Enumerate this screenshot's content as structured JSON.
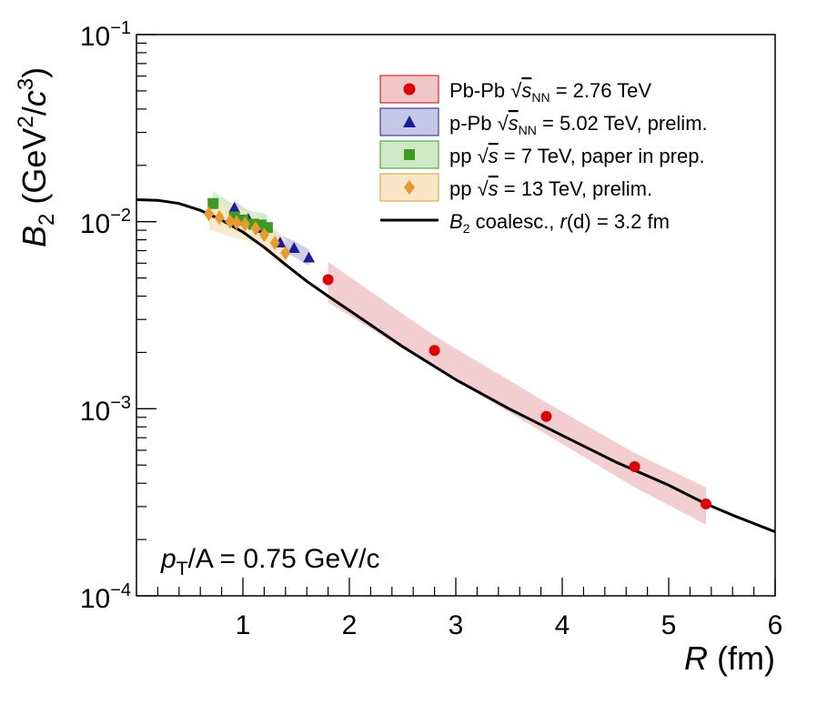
{
  "chart_data": {
    "type": "scatter",
    "title": "",
    "xlabel": "R (fm)",
    "ylabel": "B2 (GeV^2/c^3)",
    "xlim": [
      0,
      6
    ],
    "ylim": [
      0.0001,
      0.1
    ],
    "yscale": "log",
    "grid": false,
    "legend_position": "top-right",
    "x_ticks": [
      "1",
      "2",
      "3",
      "4",
      "5",
      "6"
    ],
    "y_ticks": [
      {
        "value": 0.1,
        "mantissa": "10",
        "exp": "−1"
      },
      {
        "value": 0.01,
        "mantissa": "10",
        "exp": "−2"
      },
      {
        "value": 0.001,
        "mantissa": "10",
        "exp": "−3"
      },
      {
        "value": 0.0001,
        "mantissa": "10",
        "exp": "−4"
      }
    ],
    "annotation": {
      "pre": "p",
      "sub": "T",
      "post": "/A = 0.75 GeV/c"
    },
    "series": [
      {
        "name": "Pb-Pb √sNN = 2.76 TeV",
        "marker": "circle",
        "color": "#dd0000",
        "band_color": "#f0c6c9",
        "x": [
          1.8,
          2.8,
          3.85,
          4.68,
          5.35
        ],
        "y": [
          0.0049,
          0.00205,
          0.00091,
          0.00049,
          0.00031
        ],
        "band_lo": [
          0.0037,
          0.00165,
          0.00073,
          0.00038,
          0.00024
        ],
        "band_hi": [
          0.0061,
          0.00245,
          0.00108,
          0.00058,
          0.00038
        ]
      },
      {
        "name": "p-Pb √sNN = 5.02 TeV, prelim.",
        "marker": "triangle",
        "color": "#1c1c9a",
        "band_color": "#c6c6e6",
        "x": [
          0.92,
          1.05,
          1.18,
          1.35,
          1.48,
          1.62
        ],
        "y": [
          0.0118,
          0.0103,
          0.0092,
          0.0077,
          0.0072,
          0.0064
        ],
        "band_lo": [
          0.0108,
          0.0094,
          0.0083,
          0.007,
          0.0065,
          0.0058
        ],
        "band_hi": [
          0.013,
          0.0113,
          0.0101,
          0.0085,
          0.0079,
          0.0071
        ]
      },
      {
        "name": "pp √s = 7 TeV, paper in prep.",
        "marker": "square",
        "color": "#3e9a23",
        "band_color": "#cfe9c6",
        "x": [
          0.72,
          0.92,
          1.0,
          1.1,
          1.17,
          1.23
        ],
        "y": [
          0.0125,
          0.0106,
          0.0102,
          0.0097,
          0.0096,
          0.0093
        ],
        "band_lo": [
          0.0108,
          0.0091,
          0.0087,
          0.0083,
          0.0081,
          0.0079
        ],
        "band_hi": [
          0.0145,
          0.0123,
          0.0119,
          0.0113,
          0.0112,
          0.0109
        ]
      },
      {
        "name": "pp √s = 13 TeV, prelim.",
        "marker": "diamond",
        "color": "#e99a2c",
        "band_color": "#f8e6c6",
        "x": [
          0.68,
          0.78,
          0.88,
          0.94,
          1.02,
          1.12,
          1.2,
          1.3,
          1.4
        ],
        "y": [
          0.011,
          0.0105,
          0.01,
          0.0099,
          0.0097,
          0.0092,
          0.0085,
          0.0077,
          0.0068
        ],
        "band_lo": [
          0.0091,
          0.0087,
          0.0083,
          0.0082,
          0.008,
          0.0076,
          0.007,
          0.0063,
          0.0056
        ],
        "band_hi": [
          0.013,
          0.0124,
          0.0118,
          0.0117,
          0.0114,
          0.0108,
          0.01,
          0.0091,
          0.0081
        ]
      }
    ],
    "model_curve": {
      "name": "B2 coalesc., r(d) = 3.2 fm",
      "color": "#000000",
      "x": [
        0.0,
        0.2,
        0.4,
        0.6,
        0.8,
        1.0,
        1.2,
        1.4,
        1.6,
        1.8,
        2.0,
        2.5,
        3.0,
        3.5,
        4.0,
        4.5,
        5.0,
        5.35,
        5.6,
        6.0
      ],
      "y": [
        0.0131,
        0.013,
        0.0125,
        0.0115,
        0.0102,
        0.0088,
        0.0073,
        0.0059,
        0.0048,
        0.004,
        0.00335,
        0.00215,
        0.00143,
        0.001,
        0.00072,
        0.00052,
        0.00039,
        0.00031,
        0.00027,
        0.00022
      ]
    }
  },
  "legend": {
    "entries": [
      {
        "pre": "Pb-Pb ",
        "sqrt": "s",
        "sub": "NN",
        "post": " = 2.76 TeV"
      },
      {
        "pre": "p-Pb ",
        "sqrt": "s",
        "sub": "NN",
        "post": " = 5.02 TeV, prelim."
      },
      {
        "pre": "pp ",
        "sqrt": "s",
        "sub": "",
        "post": " = 7 TeV, paper in prep."
      },
      {
        "pre": "pp ",
        "sqrt": "s",
        "sub": "",
        "post": " = 13 TeV, prelim."
      },
      {
        "pre": "",
        "B": "B",
        "Bsub": "2",
        "post": " coalesc., ",
        "r": "r",
        "rpost": "(d) = 3.2 fm"
      }
    ]
  },
  "axis_labels": {
    "x_var": "R",
    "x_unit": " (fm)",
    "y_var": "B",
    "y_sub": "2",
    "y_unit_pre": " (GeV",
    "y_unit_exp1": "2",
    "y_unit_mid": "/",
    "y_unit_c": "c",
    "y_unit_exp2": "3",
    "y_unit_post": ")"
  }
}
